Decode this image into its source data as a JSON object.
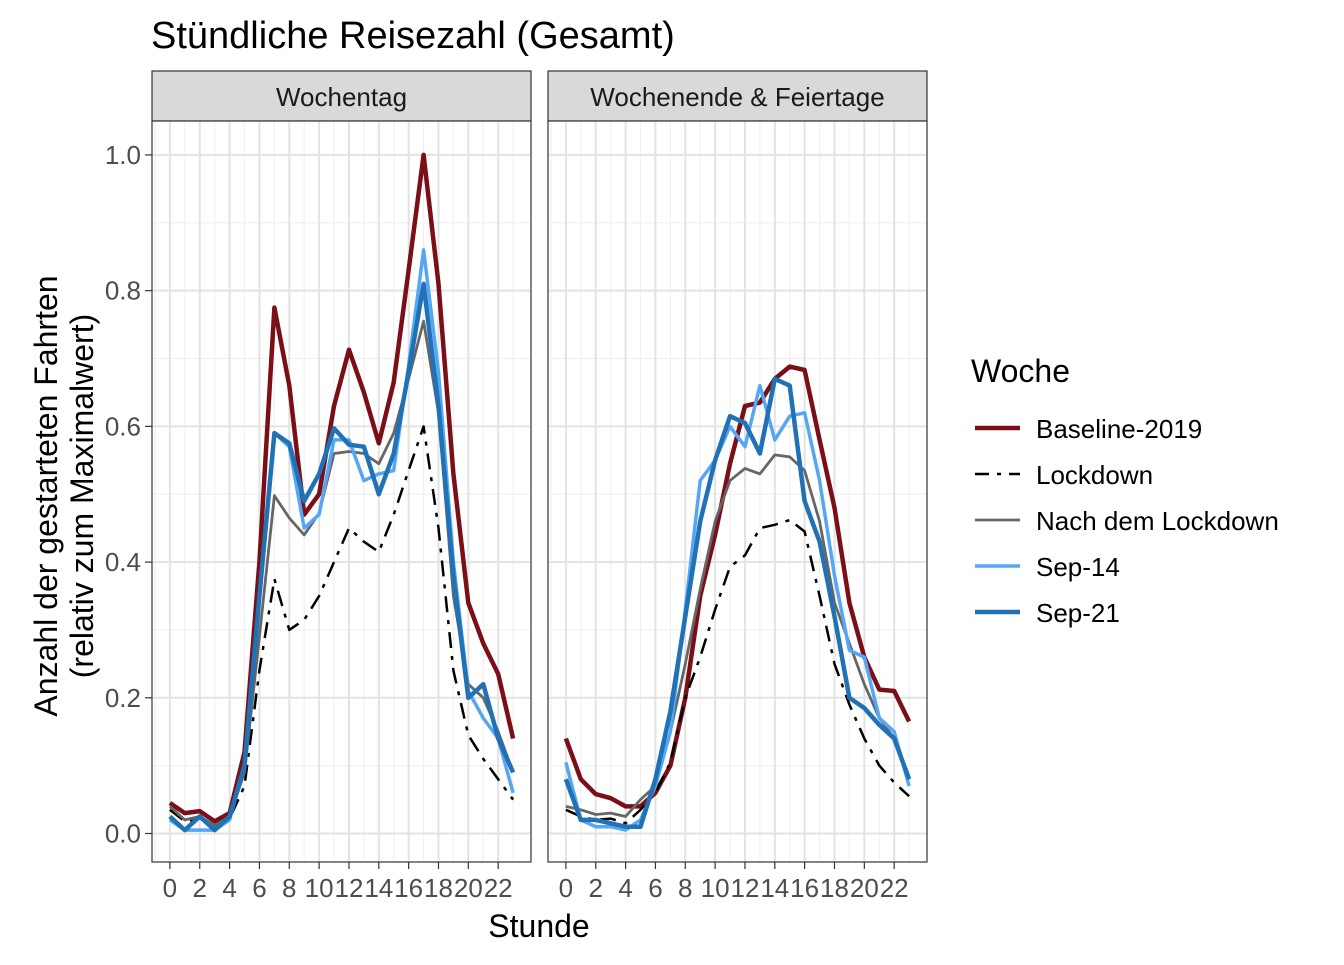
{
  "chart_data": {
    "type": "line",
    "title": "Stündliche Reisezahl (Gesamt)",
    "xlabel": "Stunde",
    "ylabel_line1": "Anzahl der gestarteten Fahrten",
    "ylabel_line2": "(relativ zum Maximalwert)",
    "xlim": [
      -1.2,
      24.2
    ],
    "ylim": [
      -0.042,
      1.05
    ],
    "x_ticks": [
      0,
      2,
      4,
      6,
      8,
      10,
      12,
      14,
      16,
      18,
      20,
      22
    ],
    "y_ticks": [
      0.0,
      0.2,
      0.4,
      0.6,
      0.8,
      1.0
    ],
    "y_tick_labels": [
      "0.0",
      "0.2",
      "0.4",
      "0.6",
      "0.8",
      "1.0"
    ],
    "grid": true,
    "legend": {
      "title": "Woche",
      "position": "right",
      "entries": [
        "Baseline-2019",
        "Lockdown",
        "Nach dem Lockdown",
        "Sep-14",
        "Sep-21"
      ]
    },
    "series_styles": [
      {
        "name": "Baseline-2019",
        "color": "#7b0f17",
        "width": 4.5,
        "dash": ""
      },
      {
        "name": "Lockdown",
        "color": "#000000",
        "width": 2.5,
        "dash": "16,8,4,8"
      },
      {
        "name": "Nach dem Lockdown",
        "color": "#666666",
        "width": 2.8,
        "dash": ""
      },
      {
        "name": "Sep-14",
        "color": "#55a7f5",
        "width": 3.5,
        "dash": ""
      },
      {
        "name": "Sep-21",
        "color": "#2171b5",
        "width": 4.5,
        "dash": ""
      }
    ],
    "panels": [
      {
        "label": "Wochentag",
        "x": [
          0,
          1,
          2,
          3,
          4,
          5,
          6,
          7,
          8,
          9,
          10,
          11,
          12,
          13,
          14,
          15,
          16,
          17,
          18,
          19,
          20,
          21,
          22,
          23
        ],
        "series": [
          {
            "name": "Baseline-2019",
            "values": [
              0.045,
              0.03,
              0.033,
              0.018,
              0.03,
              0.12,
              0.4,
              0.775,
              0.66,
              0.47,
              0.5,
              0.63,
              0.713,
              0.65,
              0.575,
              0.665,
              0.83,
              1.0,
              0.81,
              0.53,
              0.34,
              0.28,
              0.235,
              0.14
            ]
          },
          {
            "name": "Lockdown",
            "values": [
              0.035,
              0.018,
              0.022,
              0.012,
              0.022,
              0.07,
              0.24,
              0.375,
              0.3,
              0.315,
              0.35,
              0.4,
              0.45,
              0.43,
              0.415,
              0.47,
              0.535,
              0.6,
              0.45,
              0.24,
              0.145,
              0.11,
              0.08,
              0.05
            ]
          },
          {
            "name": "Nach dem Lockdown",
            "values": [
              0.04,
              0.02,
              0.025,
              0.012,
              0.025,
              0.09,
              0.29,
              0.498,
              0.465,
              0.44,
              0.472,
              0.56,
              0.563,
              0.56,
              0.545,
              0.59,
              0.67,
              0.755,
              0.62,
              0.35,
              0.22,
              0.2,
              0.15,
              0.09
            ]
          },
          {
            "name": "Sep-14",
            "values": [
              0.02,
              0.005,
              0.005,
              0.005,
              0.02,
              0.1,
              0.35,
              0.59,
              0.57,
              0.45,
              0.47,
              0.58,
              0.58,
              0.52,
              0.53,
              0.535,
              0.69,
              0.86,
              0.68,
              0.4,
              0.21,
              0.17,
              0.14,
              0.06
            ]
          },
          {
            "name": "Sep-21",
            "values": [
              0.025,
              0.005,
              0.025,
              0.005,
              0.025,
              0.1,
              0.35,
              0.59,
              0.575,
              0.49,
              0.53,
              0.597,
              0.573,
              0.57,
              0.5,
              0.56,
              0.68,
              0.81,
              0.63,
              0.38,
              0.2,
              0.22,
              0.14,
              0.09
            ]
          }
        ]
      },
      {
        "label": "Wochenende & Feiertage",
        "x": [
          0,
          1,
          2,
          3,
          4,
          5,
          6,
          7,
          8,
          9,
          10,
          11,
          12,
          13,
          14,
          15,
          16,
          17,
          18,
          19,
          20,
          21,
          22,
          23
        ],
        "series": [
          {
            "name": "Baseline-2019",
            "values": [
              0.14,
              0.08,
              0.058,
              0.052,
              0.04,
              0.04,
              0.06,
              0.1,
              0.2,
              0.35,
              0.44,
              0.545,
              0.63,
              0.635,
              0.67,
              0.688,
              0.683,
              0.58,
              0.48,
              0.34,
              0.26,
              0.212,
              0.21,
              0.165
            ]
          },
          {
            "name": "Lockdown",
            "values": [
              0.035,
              0.025,
              0.02,
              0.022,
              0.015,
              0.035,
              0.06,
              0.105,
              0.2,
              0.26,
              0.33,
              0.393,
              0.41,
              0.45,
              0.455,
              0.462,
              0.445,
              0.35,
              0.25,
              0.19,
              0.14,
              0.1,
              0.075,
              0.055
            ]
          },
          {
            "name": "Nach dem Lockdown",
            "values": [
              0.04,
              0.035,
              0.028,
              0.03,
              0.025,
              0.05,
              0.07,
              0.15,
              0.25,
              0.36,
              0.46,
              0.52,
              0.538,
              0.53,
              0.558,
              0.555,
              0.535,
              0.46,
              0.34,
              0.28,
              0.22,
              0.17,
              0.14,
              0.08
            ]
          },
          {
            "name": "Sep-14",
            "values": [
              0.105,
              0.02,
              0.01,
              0.01,
              0.005,
              0.02,
              0.07,
              0.15,
              0.33,
              0.52,
              0.55,
              0.6,
              0.57,
              0.66,
              0.58,
              0.615,
              0.62,
              0.52,
              0.38,
              0.27,
              0.26,
              0.17,
              0.15,
              0.07
            ]
          },
          {
            "name": "Sep-21",
            "values": [
              0.08,
              0.02,
              0.02,
              0.015,
              0.01,
              0.01,
              0.08,
              0.18,
              0.32,
              0.46,
              0.55,
              0.615,
              0.605,
              0.56,
              0.67,
              0.66,
              0.49,
              0.43,
              0.32,
              0.2,
              0.185,
              0.16,
              0.14,
              0.08
            ]
          }
        ]
      }
    ]
  }
}
